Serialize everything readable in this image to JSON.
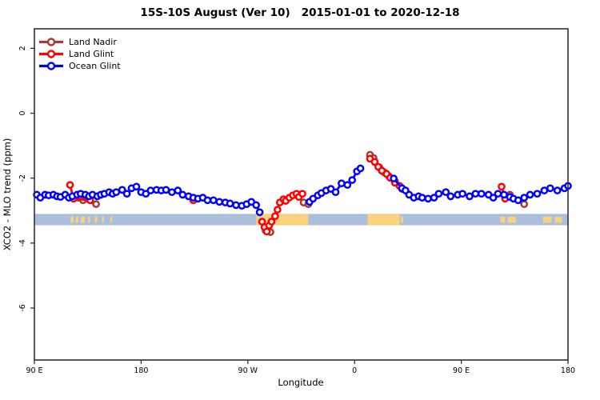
{
  "title": "15S-10S August (Ver 10)   2015-01-01 to 2020-12-18",
  "chart_data": {
    "type": "scatter",
    "title": "15S-10S August (Ver 10)   2015-01-01 to 2020-12-18",
    "xlabel": "Longitude",
    "ylabel": "XCO2 - MLO trend (ppm)",
    "xlim": [
      90,
      540
    ],
    "ylim": [
      -7.6,
      2.6
    ],
    "grid": false,
    "legend_position": "top-left",
    "x_ticks": [
      {
        "lon": 90,
        "label": "90 E"
      },
      {
        "lon": 180,
        "label": "180"
      },
      {
        "lon": 270,
        "label": "90 W"
      },
      {
        "lon": 360,
        "label": "0"
      },
      {
        "lon": 450,
        "label": "90 E"
      },
      {
        "lon": 540,
        "label": "180"
      }
    ],
    "y_ticks": [
      {
        "value": 2,
        "label": "2"
      },
      {
        "value": 0,
        "label": "0"
      },
      {
        "value": -2,
        "label": "-2"
      },
      {
        "value": -4,
        "label": "-4"
      },
      {
        "value": -6,
        "label": "-6"
      }
    ],
    "series": [
      {
        "name": "Land Nadir",
        "color": "#A33B32",
        "segments": [
          [
            [
              127,
              -2.6
            ],
            [
              131,
              -2.68
            ],
            [
              142,
              -2.8
            ]
          ],
          [
            [
              285,
              -3.61
            ],
            [
              289,
              -3.66
            ]
          ],
          [
            [
              317,
              -2.75
            ],
            [
              321,
              -2.8
            ]
          ],
          [
            [
              373,
              -1.28
            ],
            [
              376,
              -1.38
            ],
            [
              381,
              -1.67
            ],
            [
              385,
              -1.82
            ],
            [
              389,
              -1.94
            ],
            [
              394,
              -2.09
            ]
          ],
          [
            [
              491,
              -2.51
            ],
            [
              503,
              -2.8
            ]
          ]
        ]
      },
      {
        "name": "Land Glint",
        "color": "#FF0000",
        "segments": [
          [
            [
              120,
              -2.21
            ],
            [
              123,
              -2.63
            ],
            [
              137,
              -2.68
            ]
          ],
          [
            [
              224,
              -2.68
            ]
          ],
          [
            [
              282,
              -3.34
            ],
            [
              284,
              -3.51
            ],
            [
              286,
              -3.64
            ],
            [
              288,
              -3.46
            ],
            [
              290,
              -3.34
            ],
            [
              293,
              -3.17
            ],
            [
              295,
              -2.97
            ],
            [
              297,
              -2.75
            ],
            [
              300,
              -2.65
            ],
            [
              302,
              -2.7
            ],
            [
              305,
              -2.6
            ],
            [
              308,
              -2.53
            ],
            [
              311,
              -2.48
            ],
            [
              313,
              -2.58
            ],
            [
              316,
              -2.48
            ]
          ],
          [
            [
              373,
              -1.4
            ],
            [
              377,
              -1.5
            ],
            [
              380,
              -1.65
            ],
            [
              383,
              -1.77
            ],
            [
              387,
              -1.87
            ],
            [
              390,
              -1.99
            ],
            [
              394,
              -2.14
            ],
            [
              398,
              -2.24
            ],
            [
              400,
              -2.33
            ]
          ],
          [
            [
              484,
              -2.26
            ],
            [
              487,
              -2.63
            ]
          ]
        ]
      },
      {
        "name": "Ocean Glint",
        "color": "#0000FF",
        "segments": [
          [
            [
              92,
              -2.51
            ],
            [
              95,
              -2.6
            ],
            [
              99,
              -2.51
            ],
            [
              102,
              -2.53
            ],
            [
              106,
              -2.51
            ],
            [
              109,
              -2.56
            ],
            [
              112,
              -2.58
            ],
            [
              116,
              -2.51
            ],
            [
              119,
              -2.6
            ],
            [
              122,
              -2.56
            ],
            [
              126,
              -2.51
            ],
            [
              129,
              -2.48
            ],
            [
              133,
              -2.51
            ],
            [
              136,
              -2.56
            ],
            [
              139,
              -2.51
            ],
            [
              143,
              -2.56
            ],
            [
              146,
              -2.51
            ],
            [
              149,
              -2.48
            ],
            [
              153,
              -2.43
            ],
            [
              156,
              -2.48
            ],
            [
              159,
              -2.43
            ],
            [
              164,
              -2.36
            ],
            [
              168,
              -2.48
            ],
            [
              172,
              -2.31
            ],
            [
              176,
              -2.26
            ],
            [
              180,
              -2.43
            ],
            [
              184,
              -2.48
            ],
            [
              188,
              -2.38
            ],
            [
              193,
              -2.36
            ],
            [
              197,
              -2.38
            ],
            [
              201,
              -2.36
            ],
            [
              206,
              -2.43
            ],
            [
              211,
              -2.38
            ],
            [
              215,
              -2.51
            ],
            [
              220,
              -2.56
            ],
            [
              224,
              -2.6
            ],
            [
              228,
              -2.63
            ],
            [
              232,
              -2.6
            ],
            [
              236,
              -2.68
            ],
            [
              241,
              -2.68
            ],
            [
              246,
              -2.73
            ],
            [
              251,
              -2.75
            ],
            [
              255,
              -2.78
            ],
            [
              260,
              -2.83
            ],
            [
              265,
              -2.85
            ],
            [
              269,
              -2.8
            ],
            [
              273,
              -2.73
            ],
            [
              277,
              -2.83
            ],
            [
              280,
              -3.05
            ]
          ],
          [
            [
              322,
              -2.73
            ],
            [
              325,
              -2.63
            ],
            [
              329,
              -2.53
            ],
            [
              332,
              -2.46
            ],
            [
              336,
              -2.38
            ],
            [
              340,
              -2.33
            ],
            [
              344,
              -2.43
            ],
            [
              349,
              -2.16
            ],
            [
              354,
              -2.21
            ],
            [
              358,
              -2.06
            ],
            [
              362,
              -1.79
            ],
            [
              365,
              -1.7
            ]
          ],
          [
            [
              393,
              -2.01
            ],
            [
              400,
              -2.31
            ],
            [
              403,
              -2.38
            ],
            [
              406,
              -2.51
            ],
            [
              410,
              -2.6
            ],
            [
              414,
              -2.56
            ],
            [
              417,
              -2.6
            ],
            [
              422,
              -2.63
            ],
            [
              427,
              -2.6
            ],
            [
              431,
              -2.48
            ],
            [
              437,
              -2.43
            ],
            [
              441,
              -2.56
            ],
            [
              447,
              -2.51
            ],
            [
              451,
              -2.48
            ],
            [
              457,
              -2.56
            ],
            [
              462,
              -2.48
            ],
            [
              467,
              -2.48
            ],
            [
              473,
              -2.51
            ],
            [
              477,
              -2.6
            ],
            [
              481,
              -2.48
            ],
            [
              486,
              -2.51
            ],
            [
              491,
              -2.58
            ],
            [
              494,
              -2.63
            ],
            [
              498,
              -2.68
            ],
            [
              503,
              -2.6
            ],
            [
              508,
              -2.51
            ],
            [
              514,
              -2.48
            ],
            [
              520,
              -2.38
            ],
            [
              525,
              -2.31
            ],
            [
              531,
              -2.38
            ],
            [
              537,
              -2.31
            ],
            [
              540,
              -2.24
            ]
          ]
        ]
      }
    ],
    "surface_band": {
      "ocean_color": "#AABFDB",
      "land_color": "#FAD17C",
      "y_top": -3.1,
      "y_bottom": -3.45,
      "land_segments": [
        {
          "from": 120.5,
          "to": 123,
          "style": "speckle"
        },
        {
          "from": 125,
          "to": 127,
          "style": "speckle"
        },
        {
          "from": 129,
          "to": 132.5,
          "style": "speckle"
        },
        {
          "from": 135,
          "to": 137,
          "style": "speckle"
        },
        {
          "from": 141,
          "to": 143,
          "style": "speckle"
        },
        {
          "from": 147,
          "to": 148.5,
          "style": "speckle"
        },
        {
          "from": 154,
          "to": 155.5,
          "style": "speckle"
        },
        {
          "from": 277,
          "to": 321,
          "style": "solid"
        },
        {
          "from": 371,
          "to": 398,
          "style": "solid"
        },
        {
          "from": 399,
          "to": 401,
          "style": "speckle"
        },
        {
          "from": 483,
          "to": 487,
          "style": "speckle"
        },
        {
          "from": 489,
          "to": 496,
          "style": "speckle"
        },
        {
          "from": 519,
          "to": 526,
          "style": "speckle"
        },
        {
          "from": 529,
          "to": 535,
          "style": "speckle"
        }
      ]
    }
  }
}
